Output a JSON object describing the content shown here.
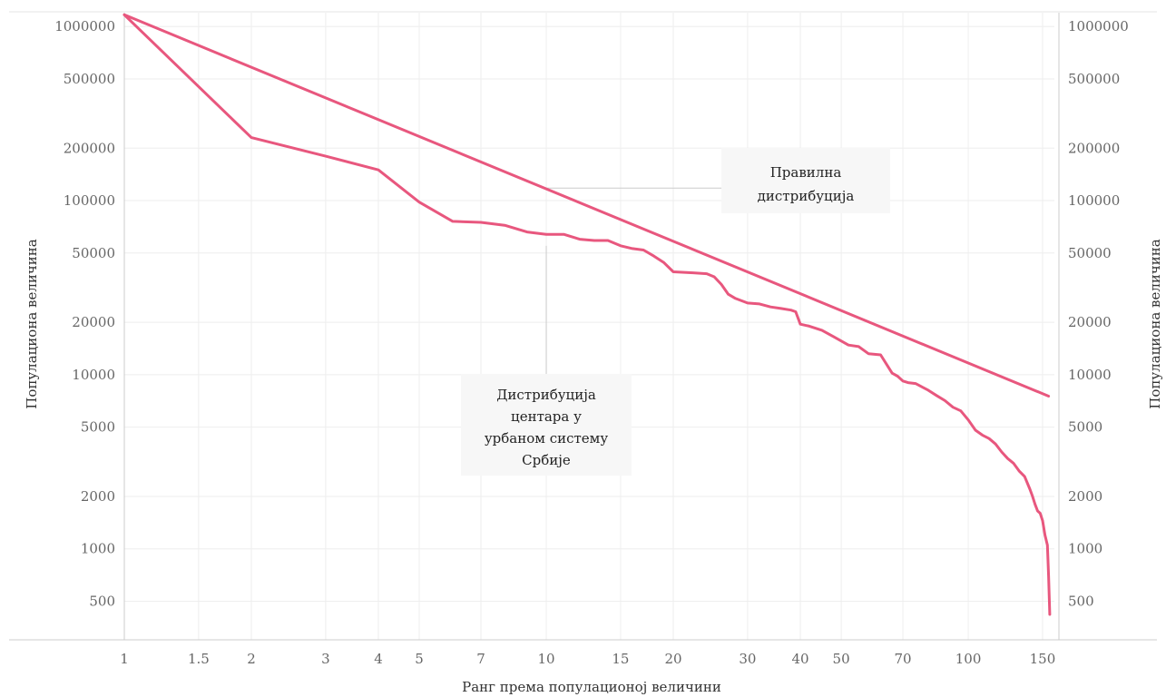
{
  "chart_data": {
    "type": "line",
    "title": "",
    "xlabel": "Ранг према популационој величини",
    "ylabel_left": "Популациона величина",
    "ylabel_right": "Популациона величина",
    "x_scale": "log",
    "y_scale": "log",
    "xlim": [
      1,
      160
    ],
    "ylim": [
      300,
      1200000
    ],
    "grid": true,
    "x_ticks": [
      1,
      1.5,
      2,
      3,
      4,
      5,
      7,
      10,
      15,
      20,
      30,
      40,
      50,
      70,
      100,
      150
    ],
    "x_tick_labels": [
      "1",
      "1.5",
      "2",
      "3",
      "4",
      "5",
      "7",
      "10",
      "15",
      "20",
      "30",
      "40",
      "50",
      "70",
      "100",
      "150"
    ],
    "y_ticks": [
      500,
      1000,
      2000,
      5000,
      10000,
      20000,
      50000,
      100000,
      200000,
      500000,
      1000000
    ],
    "y_tick_labels": [
      "500",
      "1000",
      "2000",
      "5000",
      "10000",
      "20000",
      "50000",
      "100000",
      "200000",
      "500000",
      "1000000"
    ],
    "line_color": "#e8577e",
    "series": [
      {
        "key": "rank_size",
        "x": [
          1,
          155
        ],
        "y": [
          1166763,
          7528
        ]
      },
      {
        "key": "serbia",
        "x": [
          1,
          2,
          3,
          4,
          5,
          6,
          7,
          8,
          9,
          10,
          11,
          12,
          13,
          14,
          15,
          16,
          17,
          18,
          19,
          20,
          22,
          24,
          25,
          26,
          27,
          28,
          30,
          32,
          34,
          36,
          38,
          39,
          40,
          42,
          45,
          48,
          52,
          55,
          58,
          62,
          64,
          66,
          68,
          70,
          72,
          75,
          80,
          84,
          88,
          92,
          96,
          100,
          104,
          108,
          112,
          116,
          120,
          124,
          128,
          132,
          136,
          140,
          142,
          144,
          146,
          148,
          150,
          152,
          154,
          155,
          156
        ],
        "y": [
          1166763,
          230000,
          180000,
          150000,
          98000,
          76000,
          75000,
          72000,
          66000,
          64000,
          64000,
          60000,
          59000,
          59000,
          55000,
          53000,
          52000,
          48000,
          44000,
          39000,
          38500,
          38000,
          36500,
          33000,
          29000,
          27500,
          25800,
          25500,
          24500,
          24000,
          23500,
          23000,
          19500,
          19000,
          18000,
          16500,
          14800,
          14500,
          13200,
          13000,
          11500,
          10200,
          9800,
          9200,
          9000,
          8900,
          8200,
          7600,
          7100,
          6500,
          6200,
          5500,
          4800,
          4500,
          4300,
          4000,
          3600,
          3300,
          3100,
          2800,
          2600,
          2200,
          2000,
          1800,
          1650,
          1600,
          1450,
          1200,
          1050,
          700,
          420
        ]
      }
    ],
    "annotations": [
      {
        "key": "regular",
        "lines": [
          "Правилна",
          "дистрибуција"
        ],
        "target_x": 10,
        "target_y": 118000
      },
      {
        "key": "serbia",
        "lines": [
          "Дистрибуција",
          "центара у",
          "урбаном систему",
          "Србије"
        ],
        "target_x": 10,
        "target_y": 62000
      }
    ]
  }
}
